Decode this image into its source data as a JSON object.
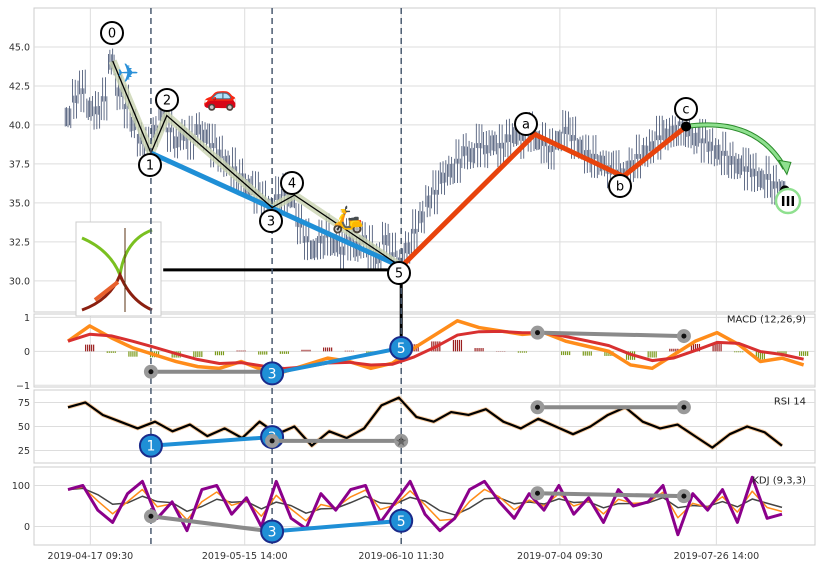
{
  "chart_data": {
    "type": "line",
    "title": "",
    "x_index_range": [
      0,
      99
    ],
    "x_ticks": [
      {
        "index": 3.1,
        "label": "2019-04-17 09:30"
      },
      {
        "index": 24.5,
        "label": "2019-05-15 14:00"
      },
      {
        "index": 46.2,
        "label": "2019-06-10 11:30"
      },
      {
        "index": 68.2,
        "label": "2019-07-04 09:30"
      },
      {
        "index": 89.9,
        "label": "2019-07-26 14:00"
      }
    ],
    "price_panel": {
      "ylim": [
        28.0,
        47.5
      ],
      "y_ticks": [
        "30.0",
        "32.5",
        "35.0",
        "37.5",
        "40.0",
        "42.5",
        "45.0"
      ],
      "close": [
        40.5,
        41.5,
        42,
        41,
        40.8,
        41.5,
        44,
        42,
        41,
        40,
        39,
        38.3,
        39.5,
        40.5,
        39.5,
        38.8,
        39.3,
        39,
        39.6,
        39.2,
        38.5,
        38,
        37.5,
        37,
        36.5,
        36,
        35.5,
        35,
        34.7,
        35.2,
        35.5,
        35.3,
        33.5,
        32.5,
        32,
        32.5,
        32.8,
        32.3,
        31.8,
        32.5,
        32,
        32.5,
        32,
        31.5,
        32.5,
        31.5,
        31,
        32,
        33,
        34,
        35,
        35.5,
        36.5,
        37,
        37.5,
        38.2,
        38,
        38.5,
        38.3,
        38.8,
        38.5,
        39,
        39.3,
        39,
        39.4,
        39,
        38.7,
        38.3,
        39,
        39.5,
        39,
        38.5,
        38,
        37.8,
        37.5,
        37,
        36.8,
        36.7,
        37.3,
        37.8,
        38.2,
        38.5,
        39,
        39.3,
        39.5,
        39.9,
        39.5,
        39,
        38.8,
        38.5,
        38.2,
        38,
        37.6,
        37.3,
        37,
        36.8,
        36.5,
        36.5,
        36,
        35.8
      ],
      "impulse_wave": [
        {
          "label": "0",
          "index": 6.2,
          "price": 44.1
        },
        {
          "label": "1",
          "index": 11.5,
          "price": 38.2
        },
        {
          "label": "2",
          "index": 13.7,
          "price": 40.6
        },
        {
          "label": "3",
          "index": 28.3,
          "price": 34.7
        },
        {
          "label": "4",
          "index": 31.4,
          "price": 35.5
        },
        {
          "label": "5",
          "index": 46.2,
          "price": 30.9
        }
      ],
      "corrective_wave": [
        {
          "label": "5",
          "index": 46.2,
          "price": 30.9
        },
        {
          "label": "a",
          "index": 64.7,
          "price": 39.4
        },
        {
          "label": "b",
          "index": 77.0,
          "price": 36.7
        },
        {
          "label": "c",
          "index": 85.7,
          "price": 39.9
        }
      ],
      "projection": {
        "label": "III",
        "from_index": 85.7,
        "from_price": 39.9,
        "to_index": 99.4,
        "to_price": 35.8
      },
      "support_level": {
        "price": 30.7,
        "from_index": 13.2,
        "to_index": 46.2
      },
      "icons": [
        "airplane-icon",
        "car-icon",
        "scooter-icon"
      ],
      "dashed_markers_index": [
        11.5,
        28.3,
        46.2
      ]
    },
    "macd_panel": {
      "label": "MACD (12,26,9)",
      "ylim": [
        -1.05,
        1.1
      ],
      "y_ticks": [
        "−1",
        "0",
        "1"
      ],
      "step": 3,
      "macd": [
        0.3,
        0.75,
        0.4,
        0.1,
        -0.1,
        -0.3,
        -0.45,
        -0.5,
        -0.3,
        -0.55,
        -0.6,
        -0.4,
        -0.2,
        -0.3,
        -0.5,
        -0.35,
        0.1,
        0.5,
        0.9,
        0.7,
        0.6,
        0.5,
        0.55,
        0.3,
        0.15,
        0.0,
        -0.4,
        -0.5,
        -0.1,
        0.3,
        0.55,
        0.2,
        -0.3,
        -0.2,
        -0.4
      ],
      "divergences": [
        {
          "type": "gray",
          "points": [
            {
              "index": 11.5,
              "value": -0.6
            },
            {
              "index": 28.3,
              "value": -0.6
            }
          ]
        },
        {
          "type": "blue",
          "points": [
            {
              "index": 28.3,
              "value": -0.65,
              "label": "3"
            },
            {
              "index": 46.2,
              "value": 0.1,
              "label": "5"
            }
          ]
        },
        {
          "type": "gray",
          "points": [
            {
              "index": 65.1,
              "value": 0.55
            },
            {
              "index": 85.4,
              "value": 0.45
            }
          ]
        }
      ]
    },
    "rsi_panel": {
      "label": "RSI 14",
      "ylim": [
        12,
        88
      ],
      "y_ticks": [
        "25",
        "50",
        "75"
      ],
      "step": 3,
      "rsi": [
        70,
        75,
        62,
        55,
        48,
        55,
        45,
        52,
        40,
        48,
        38,
        55,
        42,
        50,
        30,
        45,
        38,
        48,
        72,
        80,
        60,
        55,
        65,
        62,
        68,
        55,
        48,
        58,
        50,
        42,
        50,
        62,
        70,
        55,
        48,
        52,
        40,
        28,
        42,
        50,
        44,
        30
      ],
      "divergences": [
        {
          "type": "blue",
          "points": [
            {
              "index": 11.5,
              "value": 30,
              "label": "1"
            },
            {
              "index": 28.3,
              "value": 39,
              "label": "3"
            }
          ]
        },
        {
          "type": "gray",
          "points": [
            {
              "index": 28.3,
              "value": 35
            },
            {
              "index": 46.2,
              "value": 35
            }
          ]
        },
        {
          "type": "gray",
          "points": [
            {
              "index": 65.1,
              "value": 70
            },
            {
              "index": 85.4,
              "value": 70
            }
          ]
        }
      ]
    },
    "kdj_panel": {
      "label": "KDJ (9,3,3)",
      "ylim": [
        -45,
        145
      ],
      "y_ticks": [
        "0",
        "100"
      ],
      "step": 2,
      "j": [
        90,
        100,
        40,
        10,
        80,
        110,
        20,
        60,
        -10,
        90,
        100,
        30,
        70,
        0,
        110,
        20,
        -5,
        80,
        40,
        90,
        100,
        10,
        60,
        110,
        30,
        -10,
        20,
        90,
        110,
        60,
        20,
        80,
        40,
        100,
        30,
        70,
        10,
        90,
        50,
        60,
        100,
        -20,
        80,
        40,
        90,
        10,
        120,
        20,
        30
      ],
      "divergences": [
        {
          "type": "gray",
          "points": [
            {
              "index": 11.5,
              "value": 25
            },
            {
              "index": 28.3,
              "value": -12
            }
          ]
        },
        {
          "type": "blue",
          "points": [
            {
              "index": 28.3,
              "value": -12,
              "label": "3"
            },
            {
              "index": 46.2,
              "value": 14,
              "label": "5"
            }
          ]
        },
        {
          "type": "gray",
          "points": [
            {
              "index": 65.1,
              "value": 81
            },
            {
              "index": 85.4,
              "value": 74
            }
          ]
        }
      ]
    },
    "colors": {
      "price": "#3b4a6b",
      "impulse": "#000000",
      "impulse_halo": "#c9d3b0",
      "trend_blue": "#1f8fd6",
      "corrective": "#e8430c",
      "projection": "#8fe08f",
      "macd": "#ff8c1a",
      "signal": "#d83030",
      "hist_pos": "#9b2020",
      "hist_neg": "#7a9a1a",
      "kdj_j": "#8b008b",
      "kdj_k": "#ff8c1a",
      "kdj_d": "#444444",
      "gray_div": "#8a8a8a"
    }
  }
}
